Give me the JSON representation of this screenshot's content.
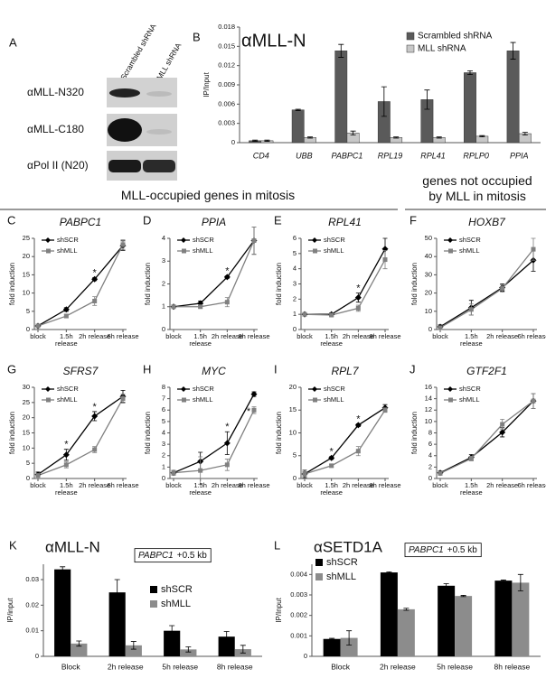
{
  "blot": {
    "panel": "A",
    "columns": [
      "Scrambled shRNA",
      "MLL shRNA"
    ],
    "rows": [
      "αMLL-N320",
      "αMLL-C180",
      "αPol II (N20)"
    ]
  },
  "section_headers": [
    "MLL-occupied genes in mitosis",
    "genes not occupied by MLL in mitosis"
  ],
  "chart_data": [
    {
      "panel": "B",
      "type": "bar",
      "title": "αMLL-N",
      "ylabel": "IP/Input",
      "italic_categories": true,
      "categories": [
        "CD4",
        "UBB",
        "PABPC1",
        "RPL19",
        "RPL41",
        "RPLP0",
        "PPIA"
      ],
      "ylim": [
        0,
        0.018
      ],
      "yticks": [
        0,
        0.003,
        0.006,
        0.009,
        0.012,
        0.015,
        0.018
      ],
      "legend": "upper right",
      "series": [
        {
          "name": "Scrambled shRNA",
          "color": "#5a5a5a",
          "values": [
            0.0003,
            0.0051,
            0.0143,
            0.0064,
            0.0067,
            0.0109,
            0.0143
          ],
          "errors": [
            0.0001,
            0.0001,
            0.001,
            0.0023,
            0.0015,
            0.0003,
            0.0013
          ]
        },
        {
          "name": "MLL shRNA",
          "color": "#c8c8c8",
          "values": [
            0.0003,
            0.0008,
            0.0015,
            0.0008,
            0.0008,
            0.001,
            0.0014
          ],
          "errors": [
            0.0001,
            0.0001,
            0.0003,
            0.0001,
            0.0001,
            0.0001,
            0.0002
          ]
        }
      ]
    },
    {
      "panel": "C",
      "type": "line",
      "title": "PABPC1",
      "ylabel": "fold induction",
      "categories": [
        "block",
        "1.5h release",
        "2h release",
        "6h release"
      ],
      "ylim": [
        0,
        25
      ],
      "yticks": [
        0,
        5,
        10,
        15,
        20,
        25
      ],
      "legend": "upper left",
      "series": [
        {
          "name": "shSCR",
          "color": "#000000",
          "marker": "diamond",
          "values": [
            1,
            5.5,
            13.8,
            23
          ],
          "errors": [
            0.2,
            0.5,
            0.4,
            1.3
          ]
        },
        {
          "name": "shMLL",
          "color": "#808080",
          "marker": "square",
          "values": [
            1,
            3.7,
            7.8,
            23.3
          ],
          "errors": [
            0.2,
            0.5,
            1.2,
            1.3
          ]
        }
      ],
      "significance": [
        null,
        null,
        "*",
        null
      ]
    },
    {
      "panel": "D",
      "type": "line",
      "title": "PPIA",
      "ylabel": "fold induction",
      "categories": [
        "block",
        "1.5h release",
        "2h release",
        "6h release"
      ],
      "ylim": [
        0,
        4
      ],
      "yticks": [
        0,
        1,
        2,
        3,
        4
      ],
      "legend": "upper left",
      "series": [
        {
          "name": "shSCR",
          "color": "#000000",
          "marker": "diamond",
          "values": [
            1,
            1.15,
            2.3,
            3.9
          ],
          "errors": [
            0.05,
            0.1,
            0.05,
            0.6
          ]
        },
        {
          "name": "shMLL",
          "color": "#808080",
          "marker": "square",
          "values": [
            1,
            1,
            1.2,
            3.9
          ],
          "errors": [
            0.05,
            0.05,
            0.2,
            0.6
          ]
        }
      ],
      "significance": [
        null,
        null,
        "*",
        null
      ]
    },
    {
      "panel": "E",
      "type": "line",
      "title": "RPL41",
      "ylabel": "fold induction",
      "categories": [
        "block",
        "1.5h release",
        "2h release",
        "6h release"
      ],
      "ylim": [
        0,
        6
      ],
      "yticks": [
        0,
        1,
        2,
        3,
        4,
        5,
        6
      ],
      "legend": "upper left",
      "series": [
        {
          "name": "shSCR",
          "color": "#000000",
          "marker": "diamond",
          "values": [
            1,
            1,
            2.1,
            5.3
          ],
          "errors": [
            0.1,
            0.1,
            0.3,
            0.7
          ]
        },
        {
          "name": "shMLL",
          "color": "#808080",
          "marker": "square",
          "values": [
            1,
            0.95,
            1.4,
            4.6
          ],
          "errors": [
            0.1,
            0.1,
            0.2,
            0.6
          ]
        }
      ],
      "significance": [
        null,
        null,
        "*",
        null
      ]
    },
    {
      "panel": "F",
      "type": "line",
      "title": "HOXB7",
      "ylabel": "fold induction",
      "categories": [
        "block",
        "1.5h release",
        "2h release",
        "6h release"
      ],
      "ylim": [
        0,
        50
      ],
      "yticks": [
        0,
        10,
        20,
        30,
        40,
        50
      ],
      "legend": "upper left",
      "series": [
        {
          "name": "shSCR",
          "color": "#000000",
          "marker": "diamond",
          "values": [
            1.5,
            12,
            23,
            38
          ],
          "errors": [
            1,
            4,
            2,
            6
          ]
        },
        {
          "name": "shMLL",
          "color": "#808080",
          "marker": "square",
          "values": [
            1,
            11,
            22.5,
            44
          ],
          "errors": [
            1,
            3,
            2,
            6
          ]
        }
      ]
    },
    {
      "panel": "G",
      "type": "line",
      "title": "SFRS7",
      "ylabel": "fold induction",
      "categories": [
        "block",
        "1.5h release",
        "2h release",
        "6h release"
      ],
      "ylim": [
        0,
        30
      ],
      "yticks": [
        0,
        5,
        10,
        15,
        20,
        25,
        30
      ],
      "legend": "upper left",
      "series": [
        {
          "name": "shSCR",
          "color": "#000000",
          "marker": "diamond",
          "values": [
            1.3,
            7.8,
            20.5,
            27
          ],
          "errors": [
            0.8,
            1.8,
            1.5,
            2
          ]
        },
        {
          "name": "shMLL",
          "color": "#808080",
          "marker": "square",
          "values": [
            1,
            4.5,
            9.5,
            26.3
          ],
          "errors": [
            0.5,
            1,
            1,
            1.5
          ]
        }
      ],
      "significance": [
        null,
        "*",
        "*",
        null
      ]
    },
    {
      "panel": "H",
      "type": "line",
      "title": "MYC",
      "ylabel": "fold induction",
      "categories": [
        "block",
        "1.5h release",
        "2h release",
        "6h release"
      ],
      "ylim": [
        0,
        8
      ],
      "yticks": [
        0,
        1,
        2,
        3,
        4,
        5,
        6,
        7,
        8
      ],
      "legend": "upper left",
      "series": [
        {
          "name": "shSCR",
          "color": "#000000",
          "marker": "diamond",
          "values": [
            0.5,
            1.5,
            3.1,
            7.4
          ],
          "errors": [
            0.2,
            0.8,
            1,
            0.2
          ]
        },
        {
          "name": "shMLL",
          "color": "#808080",
          "marker": "square",
          "values": [
            0.5,
            0.7,
            1.2,
            6
          ],
          "errors": [
            0.2,
            1.2,
            0.5,
            0.3
          ]
        }
      ],
      "significance": [
        null,
        null,
        "*",
        "*"
      ]
    },
    {
      "panel": "I",
      "type": "line",
      "title": "RPL7",
      "ylabel": "fold induction",
      "categories": [
        "block",
        "1.5h release",
        "2h release",
        "6h release"
      ],
      "ylim": [
        0,
        20
      ],
      "yticks": [
        0,
        5,
        10,
        15,
        20
      ],
      "legend": "upper left",
      "series": [
        {
          "name": "shSCR",
          "color": "#000000",
          "marker": "diamond",
          "values": [
            1,
            4.5,
            11.7,
            15.5
          ],
          "errors": [
            0.8,
            0.3,
            0.3,
            0.7
          ]
        },
        {
          "name": "shMLL",
          "color": "#808080",
          "marker": "square",
          "values": [
            1,
            2.8,
            6,
            15
          ],
          "errors": [
            0.5,
            0.3,
            1,
            0.5
          ]
        }
      ],
      "significance": [
        null,
        "*",
        "*",
        null
      ]
    },
    {
      "panel": "J",
      "type": "line",
      "title": "GTF2F1",
      "ylabel": "fold induction",
      "categories": [
        "block",
        "1.5h release",
        "2h release",
        "6h release"
      ],
      "ylim": [
        0,
        16
      ],
      "yticks": [
        0,
        2,
        4,
        6,
        8,
        10,
        12,
        14,
        16
      ],
      "legend": "upper left",
      "series": [
        {
          "name": "shSCR",
          "color": "#000000",
          "marker": "diamond",
          "values": [
            1,
            3.7,
            8.1,
            13.6
          ],
          "errors": [
            0.3,
            0.5,
            0.8,
            1.3
          ]
        },
        {
          "name": "shMLL",
          "color": "#808080",
          "marker": "square",
          "values": [
            0.9,
            3.5,
            9.5,
            13.6
          ],
          "errors": [
            0.3,
            0.4,
            0.9,
            1.3
          ]
        }
      ]
    },
    {
      "panel": "K",
      "type": "bar",
      "title": "αMLL-N",
      "ylabel": "IP/input",
      "annotation": {
        "gene": "PABPC1",
        "region": "+0.5 kb"
      },
      "categories": [
        "Block",
        "2h release",
        "5h release",
        "8h release"
      ],
      "ylim": [
        0,
        0.036
      ],
      "yticks": [
        0,
        0.01,
        0.02,
        0.03
      ],
      "legend": "upper right",
      "series": [
        {
          "name": "shSCR",
          "color": "#000000",
          "values": [
            0.034,
            0.025,
            0.01,
            0.0077
          ],
          "errors": [
            0.001,
            0.005,
            0.002,
            0.002
          ]
        },
        {
          "name": "shMLL",
          "color": "#8c8c8c",
          "values": [
            0.005,
            0.0043,
            0.0027,
            0.0028
          ],
          "errors": [
            0.001,
            0.0015,
            0.001,
            0.0015
          ]
        }
      ]
    },
    {
      "panel": "L",
      "type": "bar",
      "title": "αSETD1A",
      "ylabel": "IP/Input",
      "annotation": {
        "gene": "PABPC1",
        "region": "+0.5 kb"
      },
      "categories": [
        "Block",
        "2h release",
        "5h release",
        "8h release"
      ],
      "ylim": [
        0,
        0.0045
      ],
      "yticks": [
        0,
        0.001,
        0.002,
        0.003,
        0.004
      ],
      "legend": "upper left",
      "series": [
        {
          "name": "shSCR",
          "color": "#000000",
          "values": [
            0.00085,
            0.0041,
            0.00345,
            0.0037
          ],
          "errors": [
            3e-05,
            3e-05,
            0.0001,
            3e-05
          ]
        },
        {
          "name": "shMLL",
          "color": "#8c8c8c",
          "values": [
            0.0009,
            0.0023,
            0.00295,
            0.0036
          ],
          "errors": [
            0.00035,
            5e-05,
            3e-05,
            0.0004
          ]
        }
      ]
    }
  ]
}
